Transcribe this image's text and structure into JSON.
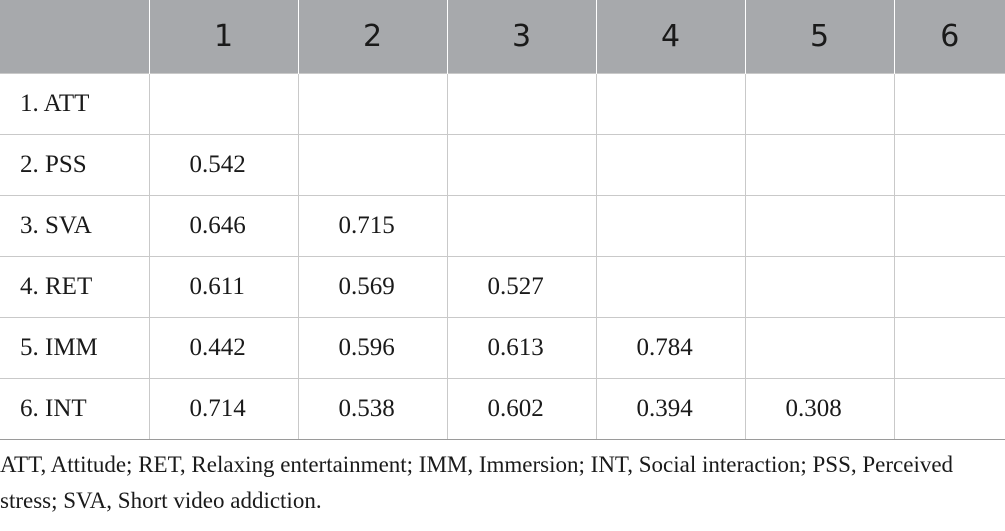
{
  "table": {
    "header": [
      "",
      "1",
      "2",
      "3",
      "4",
      "5",
      "6"
    ],
    "rows": [
      {
        "label": "1. ATT",
        "values": [
          "",
          "",
          "",
          "",
          "",
          ""
        ]
      },
      {
        "label": "2. PSS",
        "values": [
          "0.542",
          "",
          "",
          "",
          "",
          ""
        ]
      },
      {
        "label": "3. SVA",
        "values": [
          "0.646",
          "0.715",
          "",
          "",
          "",
          ""
        ]
      },
      {
        "label": "4. RET",
        "values": [
          "0.611",
          "0.569",
          "0.527",
          "",
          "",
          ""
        ]
      },
      {
        "label": "5. IMM",
        "values": [
          "0.442",
          "0.596",
          "0.613",
          "0.784",
          "",
          ""
        ]
      },
      {
        "label": "6. INT",
        "values": [
          "0.714",
          "0.538",
          "0.602",
          "0.394",
          "0.308",
          ""
        ]
      }
    ],
    "header_color": "#a7a9ac"
  },
  "note": "ATT, Attitude; RET, Relaxing entertainment; IMM, Immersion; INT, Social interaction; PSS, Perceived stress; SVA, Short video addiction."
}
